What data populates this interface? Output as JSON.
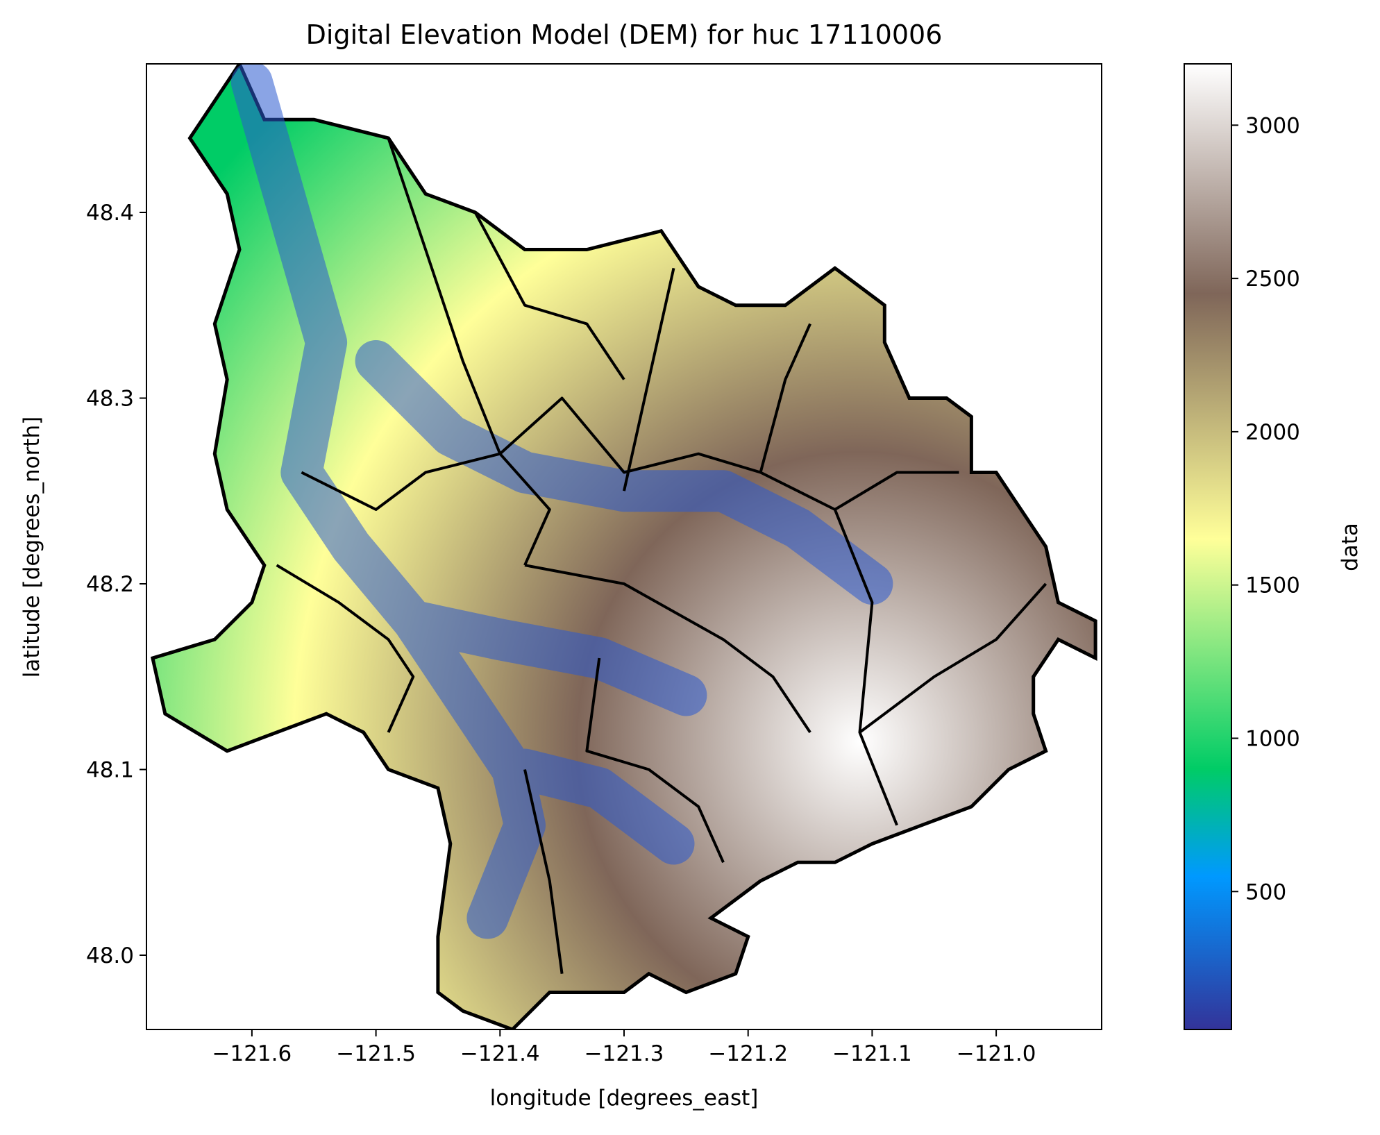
{
  "chart_data": {
    "type": "heatmap",
    "title": "Digital Elevation Model (DEM) for huc 17110006",
    "xlabel": "longitude [degrees_east]",
    "ylabel": "latitude [degrees_north]",
    "colorbar_label": "data",
    "xlim": [
      -121.685,
      -120.915
    ],
    "ylim": [
      47.96,
      48.48
    ],
    "xticks": [
      -121.6,
      -121.5,
      -121.4,
      -121.3,
      -121.2,
      -121.1,
      -121.0
    ],
    "xtick_labels": [
      "−121.6",
      "−121.5",
      "−121.4",
      "−121.3",
      "−121.2",
      "−121.1",
      "−121.0"
    ],
    "yticks": [
      48.0,
      48.1,
      48.2,
      48.3,
      48.4
    ],
    "ytick_labels": [
      "48.0",
      "48.1",
      "48.2",
      "48.3",
      "48.4"
    ],
    "colorbar_range": [
      50,
      3200
    ],
    "colorbar_ticks": [
      500,
      1000,
      1500,
      2000,
      2500,
      3000
    ],
    "colorbar_tick_labels": [
      "500",
      "1000",
      "1500",
      "2000",
      "2500",
      "3000"
    ],
    "colormap": "terrain",
    "colormap_stops": [
      {
        "v": 50,
        "color": "#333399"
      },
      {
        "v": 550,
        "color": "#0099ff"
      },
      {
        "v": 900,
        "color": "#00cc66"
      },
      {
        "v": 1650,
        "color": "#ffff99"
      },
      {
        "v": 2450,
        "color": "#7f6659"
      },
      {
        "v": 3200,
        "color": "#ffffff"
      }
    ],
    "peak_elevation_location": {
      "lon": -121.11,
      "lat": 48.115,
      "value": 3200
    },
    "basin_outline": [
      [
        -121.61,
        48.48
      ],
      [
        -121.59,
        48.45
      ],
      [
        -121.55,
        48.45
      ],
      [
        -121.49,
        48.44
      ],
      [
        -121.46,
        48.41
      ],
      [
        -121.42,
        48.4
      ],
      [
        -121.38,
        48.38
      ],
      [
        -121.33,
        48.38
      ],
      [
        -121.27,
        48.39
      ],
      [
        -121.24,
        48.36
      ],
      [
        -121.21,
        48.35
      ],
      [
        -121.17,
        48.35
      ],
      [
        -121.13,
        48.37
      ],
      [
        -121.09,
        48.35
      ],
      [
        -121.09,
        48.33
      ],
      [
        -121.07,
        48.3
      ],
      [
        -121.04,
        48.3
      ],
      [
        -121.02,
        48.29
      ],
      [
        -121.02,
        48.26
      ],
      [
        -121.0,
        48.26
      ],
      [
        -120.98,
        48.24
      ],
      [
        -120.96,
        48.22
      ],
      [
        -120.95,
        48.19
      ],
      [
        -120.92,
        48.18
      ],
      [
        -120.92,
        48.16
      ],
      [
        -120.95,
        48.17
      ],
      [
        -120.97,
        48.15
      ],
      [
        -120.97,
        48.13
      ],
      [
        -120.96,
        48.11
      ],
      [
        -120.99,
        48.1
      ],
      [
        -121.02,
        48.08
      ],
      [
        -121.06,
        48.07
      ],
      [
        -121.1,
        48.06
      ],
      [
        -121.13,
        48.05
      ],
      [
        -121.16,
        48.05
      ],
      [
        -121.19,
        48.04
      ],
      [
        -121.23,
        48.02
      ],
      [
        -121.2,
        48.01
      ],
      [
        -121.21,
        47.99
      ],
      [
        -121.25,
        47.98
      ],
      [
        -121.28,
        47.99
      ],
      [
        -121.3,
        47.98
      ],
      [
        -121.33,
        47.98
      ],
      [
        -121.36,
        47.98
      ],
      [
        -121.39,
        47.96
      ],
      [
        -121.43,
        47.97
      ],
      [
        -121.45,
        47.98
      ],
      [
        -121.45,
        48.01
      ],
      [
        -121.44,
        48.06
      ],
      [
        -121.45,
        48.09
      ],
      [
        -121.49,
        48.1
      ],
      [
        -121.51,
        48.12
      ],
      [
        -121.54,
        48.13
      ],
      [
        -121.58,
        48.12
      ],
      [
        -121.62,
        48.11
      ],
      [
        -121.67,
        48.13
      ],
      [
        -121.68,
        48.16
      ],
      [
        -121.63,
        48.17
      ],
      [
        -121.6,
        48.19
      ],
      [
        -121.59,
        48.21
      ],
      [
        -121.62,
        48.24
      ],
      [
        -121.63,
        48.27
      ],
      [
        -121.62,
        48.31
      ],
      [
        -121.63,
        48.34
      ],
      [
        -121.61,
        48.38
      ],
      [
        -121.62,
        48.41
      ],
      [
        -121.65,
        48.44
      ],
      [
        -121.61,
        48.48
      ]
    ]
  }
}
